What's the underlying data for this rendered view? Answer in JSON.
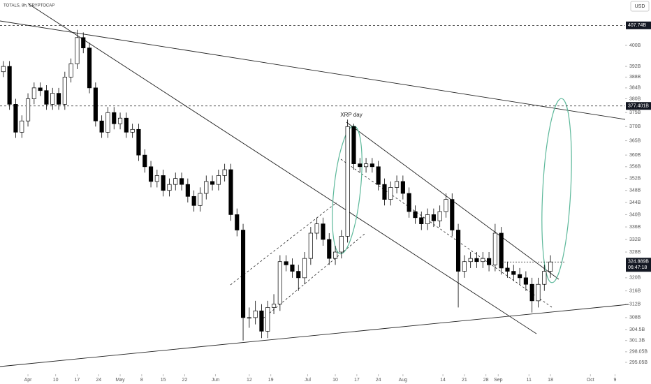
{
  "chart_data": {
    "type": "candlestick",
    "symbol": "TOTALS, 8h, CRYPTOCAP",
    "currency": "USD",
    "annotation": "XRP day",
    "log": true,
    "up_color": "#ffffff",
    "down_color": "#000000",
    "xlim": [
      -9.1,
      194.3
    ],
    "ylim": [
      291.7,
      417.8
    ],
    "xticks": [
      {
        "value": 0,
        "label": "Apr"
      },
      {
        "value": 9,
        "label": "10"
      },
      {
        "value": 16,
        "label": "17"
      },
      {
        "value": 23,
        "label": "24"
      },
      {
        "value": 30,
        "label": "May"
      },
      {
        "value": 37,
        "label": "8"
      },
      {
        "value": 44,
        "label": "15"
      },
      {
        "value": 51,
        "label": "22"
      },
      {
        "value": 61,
        "label": "Jun"
      },
      {
        "value": 72,
        "label": "12"
      },
      {
        "value": 79,
        "label": "19"
      },
      {
        "value": 91,
        "label": "Jul"
      },
      {
        "value": 100,
        "label": "10"
      },
      {
        "value": 107,
        "label": "17"
      },
      {
        "value": 114,
        "label": "24"
      },
      {
        "value": 122,
        "label": "Aug"
      },
      {
        "value": 135,
        "label": "14"
      },
      {
        "value": 142,
        "label": "21"
      },
      {
        "value": 149,
        "label": "28"
      },
      {
        "value": 153,
        "label": "Sep"
      },
      {
        "value": 163,
        "label": "11"
      },
      {
        "value": 170,
        "label": "18"
      },
      {
        "value": 183,
        "label": "Oct"
      },
      {
        "value": 191,
        "label": "9"
      }
    ],
    "yticks": [
      {
        "value": 400,
        "label": "400B"
      },
      {
        "value": 392,
        "label": "392B"
      },
      {
        "value": 388,
        "label": "388B"
      },
      {
        "value": 384,
        "label": "384B"
      },
      {
        "value": 380,
        "label": "380B"
      },
      {
        "value": 375,
        "label": "375B"
      },
      {
        "value": 370,
        "label": "370B"
      },
      {
        "value": 365,
        "label": "365B"
      },
      {
        "value": 360,
        "label": "360B"
      },
      {
        "value": 356,
        "label": "356B"
      },
      {
        "value": 352,
        "label": "352B"
      },
      {
        "value": 348,
        "label": "348B"
      },
      {
        "value": 344,
        "label": "344B"
      },
      {
        "value": 340,
        "label": "340B"
      },
      {
        "value": 336,
        "label": "336B"
      },
      {
        "value": 332,
        "label": "332B"
      },
      {
        "value": 328,
        "label": "328B"
      },
      {
        "value": 320,
        "label": "320B"
      },
      {
        "value": 316,
        "label": "316B"
      },
      {
        "value": 312,
        "label": "312B"
      },
      {
        "value": 308,
        "label": "308B"
      },
      {
        "value": 304.5,
        "label": "304.5B"
      },
      {
        "value": 301.3,
        "label": "301.3B"
      },
      {
        "value": 298.05,
        "label": "298.05B"
      },
      {
        "value": 295.05,
        "label": "295.05B"
      }
    ],
    "levels": [
      {
        "value": 407.74,
        "label": "407.74B"
      },
      {
        "value": 377.401,
        "label": "377.401B"
      }
    ],
    "last_price": {
      "value": 324.889,
      "label": "324.889B",
      "countdown": "06:47:18"
    },
    "x": [
      -8,
      -6,
      -4,
      -2,
      0,
      2,
      4,
      6,
      8,
      10,
      12,
      14,
      16,
      18,
      20,
      22,
      24,
      26,
      28,
      30,
      32,
      34,
      36,
      38,
      40,
      42,
      44,
      46,
      48,
      50,
      52,
      54,
      56,
      58,
      60,
      62,
      64,
      66,
      68,
      70,
      72,
      74,
      76,
      78,
      80,
      82,
      84,
      86,
      88,
      90,
      92,
      94,
      96,
      98,
      100,
      102,
      104,
      106,
      108,
      110,
      112,
      114,
      116,
      118,
      120,
      122,
      124,
      126,
      128,
      130,
      132,
      134,
      136,
      138,
      140,
      142,
      144,
      146,
      148,
      150,
      152,
      154,
      156,
      158,
      160,
      162,
      164,
      166,
      168,
      170
    ],
    "open": [
      390,
      392,
      378,
      368,
      372,
      380,
      384,
      383,
      378,
      382,
      378,
      388,
      393,
      403,
      399,
      384,
      372,
      368,
      375,
      371,
      373,
      368,
      369,
      360,
      356,
      351,
      353,
      348,
      350,
      352,
      350,
      346,
      343,
      347,
      351,
      350,
      353,
      355,
      340,
      335,
      308,
      308,
      310,
      304,
      311,
      312,
      325,
      324,
      322,
      320,
      326,
      334,
      337,
      332,
      326,
      328,
      333,
      370,
      357,
      356,
      357,
      356,
      350,
      345,
      349,
      351,
      347,
      341,
      339,
      337,
      340,
      338,
      341,
      345,
      335,
      322,
      325,
      326,
      325,
      326,
      324,
      334,
      323,
      322,
      321,
      320,
      318,
      313,
      318,
      322
    ],
    "high": [
      394,
      394,
      380,
      374,
      382,
      386,
      386,
      385,
      384,
      384,
      390,
      395,
      406,
      405,
      401,
      386,
      374,
      377,
      377,
      375,
      375,
      371,
      371,
      362,
      358,
      355,
      355,
      352,
      354,
      354,
      352,
      348,
      349,
      353,
      353,
      355,
      357,
      357,
      342,
      337,
      311,
      313,
      312,
      313,
      315,
      327,
      327,
      326,
      324,
      328,
      336,
      339,
      339,
      334,
      330,
      335,
      372.5,
      371,
      359,
      359,
      359,
      358,
      352,
      351,
      353,
      353,
      349,
      343,
      341,
      342,
      342,
      343,
      347,
      347,
      337,
      327,
      328,
      328,
      328,
      328,
      337,
      336,
      325,
      324,
      323,
      322,
      320,
      320,
      324,
      327
    ],
    "low": [
      388,
      376,
      366,
      366,
      370,
      378,
      381,
      376,
      376,
      376,
      376,
      386,
      391,
      397,
      382,
      370,
      366,
      366,
      369,
      369,
      366,
      366,
      358,
      354,
      349,
      349,
      346,
      346,
      348,
      348,
      344,
      341,
      341,
      345,
      348,
      348,
      351,
      338,
      333,
      301.3,
      305,
      306,
      302,
      302,
      309,
      310,
      322,
      320,
      316,
      318,
      324,
      332,
      330,
      324,
      324,
      326,
      331,
      355,
      354,
      354,
      354,
      348,
      343,
      343,
      347,
      345,
      339,
      337,
      335,
      335,
      336,
      336,
      339,
      333,
      311,
      320,
      323,
      323,
      323,
      322,
      322,
      321,
      320,
      319,
      318,
      316,
      309.5,
      311,
      316,
      320
    ],
    "close": [
      392,
      378,
      368,
      372,
      380,
      384,
      383,
      378,
      382,
      378,
      388,
      393,
      403,
      399,
      384,
      372,
      368,
      375,
      371,
      373,
      368,
      369,
      360,
      356,
      351,
      353,
      348,
      350,
      352,
      350,
      346,
      343,
      347,
      351,
      350,
      353,
      355,
      340,
      335,
      308,
      308,
      310,
      304,
      311,
      312,
      325,
      324,
      322,
      320,
      326,
      334,
      337,
      332,
      326,
      328,
      333,
      370,
      357,
      356,
      357,
      356,
      350,
      345,
      349,
      351,
      347,
      341,
      339,
      337,
      340,
      338,
      341,
      345,
      335,
      322,
      325,
      326,
      325,
      326,
      324,
      334,
      323,
      322,
      321,
      320,
      318,
      313,
      318,
      322,
      324.9
    ]
  }
}
